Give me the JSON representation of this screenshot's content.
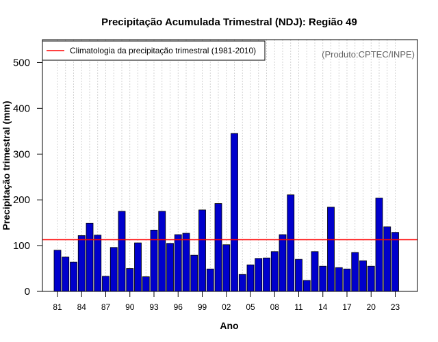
{
  "chart_data": {
    "type": "bar",
    "title": "Precipitação Acumulada Trimestral (NDJ): Região 49",
    "xlabel": "Ano",
    "ylabel": "Precipitação trimestral (mm)",
    "ylim": [
      0,
      550
    ],
    "yticks": [
      0,
      100,
      200,
      300,
      400,
      500
    ],
    "categories": [
      "81",
      "82",
      "83",
      "84",
      "85",
      "86",
      "87",
      "88",
      "89",
      "90",
      "91",
      "92",
      "93",
      "94",
      "95",
      "96",
      "97",
      "98",
      "99",
      "00",
      "01",
      "02",
      "03",
      "04",
      "05",
      "06",
      "07",
      "08",
      "09",
      "10",
      "11",
      "12",
      "13",
      "14",
      "15",
      "16",
      "17",
      "18",
      "19",
      "20",
      "21",
      "22",
      "23"
    ],
    "xtick_labels": [
      "81",
      "84",
      "87",
      "90",
      "93",
      "96",
      "99",
      "02",
      "05",
      "08",
      "11",
      "14",
      "17",
      "20",
      "23"
    ],
    "values": [
      90,
      75,
      64,
      122,
      149,
      123,
      33,
      96,
      175,
      50,
      106,
      32,
      134,
      175,
      105,
      124,
      127,
      79,
      178,
      49,
      192,
      102,
      345,
      37,
      58,
      72,
      73,
      87,
      124,
      211,
      70,
      24,
      87,
      55,
      184,
      52,
      49,
      85,
      67,
      55,
      204,
      141,
      129
    ],
    "bar_color": "#0000cc",
    "climatology": {
      "label": "Climatologia da precipitação trimestral (1981-2010)",
      "value": 113,
      "color": "#ff0000"
    },
    "legend_position": "top-left",
    "grid": "vertical dotted"
  },
  "credit": "(Produto:CPTEC/INPE)"
}
